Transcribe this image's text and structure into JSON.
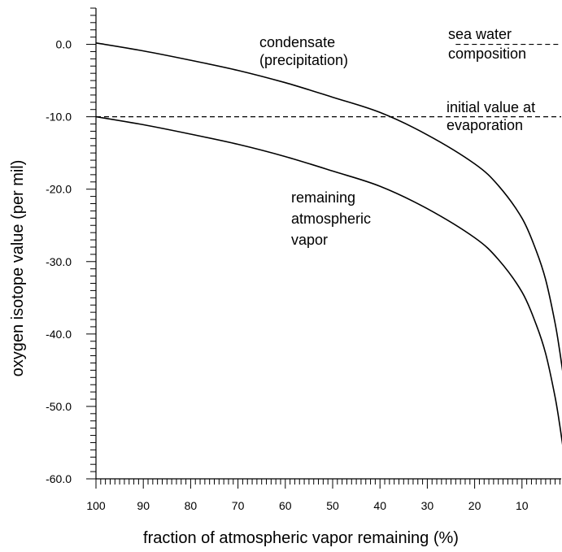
{
  "chart_data": {
    "type": "line",
    "xlabel": "fraction of atmospheric vapor remaining (%)",
    "ylabel": "oxygen isotope value (per mil)",
    "xlim": [
      100,
      0
    ],
    "ylim": [
      -60,
      5
    ],
    "x_ticks": [
      100,
      90,
      80,
      70,
      60,
      50,
      40,
      30,
      20,
      10
    ],
    "y_ticks": [
      0,
      -10,
      -20,
      -30,
      -40,
      -50,
      -60
    ],
    "y_tick_labels": [
      "0.0",
      "-10.0",
      "-20.0",
      "-30.0",
      "-40.0",
      "-50.0",
      "-60.0"
    ],
    "series": [
      {
        "x": [
          100,
          90,
          80,
          70,
          60,
          50,
          40,
          30,
          20,
          15,
          10,
          7,
          5,
          3,
          2,
          1
        ],
        "y": [
          0.2,
          -0.9,
          -2.2,
          -3.6,
          -5.3,
          -7.3,
          -9.4,
          -12.5,
          -16.5,
          -19.5,
          -24.0,
          -28.5,
          -32.5,
          -38.5,
          -42.5,
          -47.0
        ]
      },
      {
        "x": [
          100,
          90,
          80,
          70,
          60,
          50,
          40,
          30,
          20,
          15,
          10,
          7,
          5,
          3,
          2,
          1
        ],
        "y": [
          -10.0,
          -11.1,
          -12.4,
          -13.8,
          -15.5,
          -17.5,
          -19.6,
          -22.7,
          -26.7,
          -29.7,
          -34.2,
          -38.7,
          -42.7,
          -48.7,
          -52.7,
          -57.2
        ]
      }
    ],
    "reference_lines": [
      {
        "y": 0,
        "x_from": 24,
        "x_to": 1,
        "style": "dashed"
      },
      {
        "y": -10,
        "x_from": 100,
        "x_to": 1,
        "style": "dashed"
      }
    ],
    "annotations": [
      {
        "lines": [
          "condensate",
          "(precipitation)"
        ]
      },
      {
        "lines": [
          "remaining",
          "atmospheric",
          "vapor"
        ]
      },
      {
        "lines": [
          "sea water",
          "composition"
        ]
      },
      {
        "lines": [
          "initial value at",
          "evaporation"
        ]
      }
    ]
  }
}
